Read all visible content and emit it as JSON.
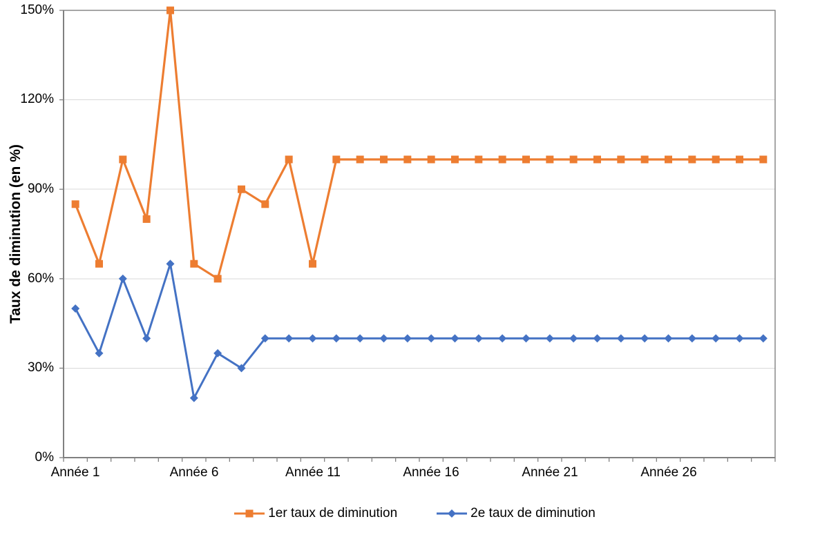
{
  "chart_data": {
    "type": "line",
    "title": "",
    "xlabel": "",
    "ylabel": "Taux de diminution (en %)",
    "ylim": [
      0,
      150
    ],
    "ytick_step": 30,
    "ytick_labels": [
      "0%",
      "30%",
      "60%",
      "90%",
      "120%",
      "150%"
    ],
    "x_count": 30,
    "xticks": [
      {
        "year": 1,
        "label": "Année 1"
      },
      {
        "year": 6,
        "label": "Année 6"
      },
      {
        "year": 11,
        "label": "Année 11"
      },
      {
        "year": 16,
        "label": "Année 16"
      },
      {
        "year": 21,
        "label": "Année 21"
      },
      {
        "year": 26,
        "label": "Année 26"
      }
    ],
    "grid": "horizontal",
    "legend_position": "bottom",
    "axis_color": "#808080",
    "gridline_color": "#D9D9D9",
    "series": [
      {
        "name": "1er taux de diminution",
        "color": "#ED7D31",
        "marker": "square",
        "values": [
          85,
          65,
          100,
          80,
          150,
          65,
          60,
          90,
          85,
          100,
          65,
          100,
          100,
          100,
          100,
          100,
          100,
          100,
          100,
          100,
          100,
          100,
          100,
          100,
          100,
          100,
          100,
          100,
          100,
          100
        ]
      },
      {
        "name": "2e taux de diminution",
        "color": "#4472C4",
        "marker": "diamond",
        "values": [
          50,
          35,
          60,
          40,
          65,
          20,
          35,
          30,
          40,
          40,
          40,
          40,
          40,
          40,
          40,
          40,
          40,
          40,
          40,
          40,
          40,
          40,
          40,
          40,
          40,
          40,
          40,
          40,
          40,
          40
        ]
      }
    ]
  }
}
